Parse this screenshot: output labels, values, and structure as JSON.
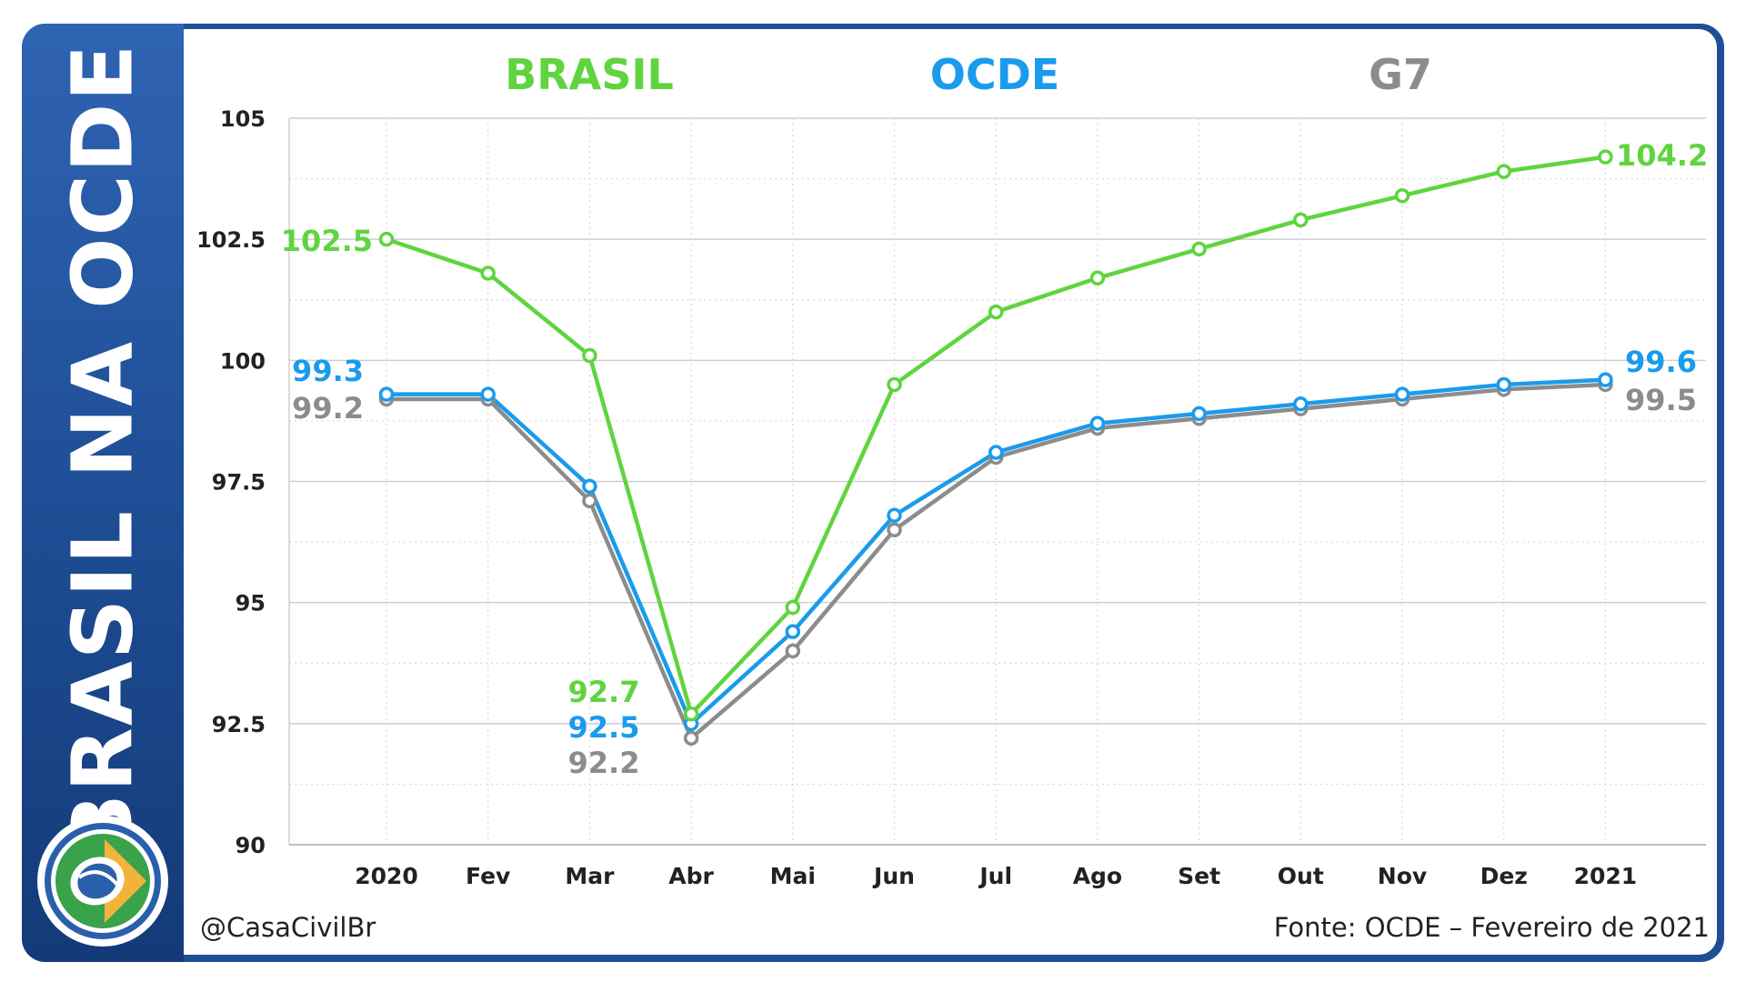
{
  "sidebar": {
    "title": "BRASIL NA OCDE"
  },
  "footer": {
    "handle": "@CasaCivilBr",
    "source": "Fonte: OCDE – Fevereiro de 2021"
  },
  "colors": {
    "brasil": "#5fd43f",
    "ocde": "#1a9bec",
    "g7": "#8c8c8c",
    "grid": "#d8d8d8"
  },
  "chart_data": {
    "type": "line",
    "categories": [
      "2020",
      "Fev",
      "Mar",
      "Abr",
      "Mai",
      "Jun",
      "Jul",
      "Ago",
      "Set",
      "Out",
      "Nov",
      "Dez",
      "2021"
    ],
    "ylim": [
      90,
      105
    ],
    "yticks": [
      "90",
      "92.5",
      "95",
      "97.5",
      "100",
      "102.5",
      "105"
    ],
    "series": [
      {
        "name": "BRASIL",
        "color": "#5fd43f",
        "values": [
          102.5,
          101.8,
          100.1,
          92.7,
          94.9,
          99.5,
          101.0,
          101.7,
          102.3,
          102.9,
          103.4,
          103.9,
          104.2
        ]
      },
      {
        "name": "OCDE",
        "color": "#1a9bec",
        "values": [
          99.3,
          99.3,
          97.4,
          92.5,
          94.4,
          96.8,
          98.1,
          98.7,
          98.9,
          99.1,
          99.3,
          99.5,
          99.6
        ]
      },
      {
        "name": "G7",
        "color": "#8c8c8c",
        "values": [
          99.2,
          99.2,
          97.1,
          92.2,
          94.0,
          96.5,
          98.0,
          98.6,
          98.8,
          99.0,
          99.2,
          99.4,
          99.5
        ]
      }
    ],
    "annotations": [
      {
        "series": "BRASIL",
        "text": "102.5"
      },
      {
        "series": "OCDE",
        "text": "99.3"
      },
      {
        "series": "G7",
        "text": "99.2"
      },
      {
        "series": "BRASIL",
        "text": "92.7"
      },
      {
        "series": "OCDE",
        "text": "92.5"
      },
      {
        "series": "G7",
        "text": "92.2"
      },
      {
        "series": "BRASIL",
        "text": "104.2"
      },
      {
        "series": "OCDE",
        "text": "99.6"
      },
      {
        "series": "G7",
        "text": "99.5"
      }
    ]
  }
}
